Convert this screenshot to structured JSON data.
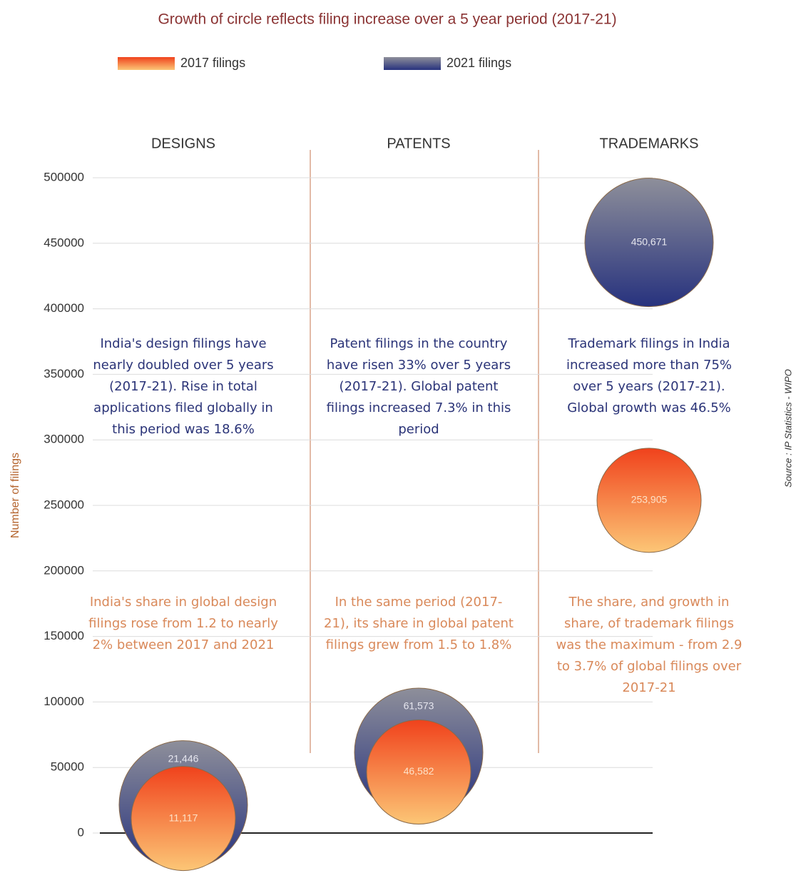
{
  "chart_data": {
    "type": "bubble",
    "title": "Growth of circle reflects filing increase over a 5 year period (2017-21)",
    "y_label": "Number of filings",
    "source": "Source : IP Statistics - WIPO",
    "categories": [
      "DESIGNS",
      "PATENTS",
      "TRADEMARKS"
    ],
    "series": [
      {
        "name": "2017 filings",
        "color": "#f0421c",
        "values": [
          11117,
          46582,
          253905
        ],
        "value_labels": [
          "11,117",
          "46,582",
          "253,905"
        ]
      },
      {
        "name": "2021 filings",
        "color": "#27327e",
        "values": [
          21446,
          61573,
          450671
        ],
        "value_labels": [
          "21,446",
          "61,573",
          "450,671"
        ]
      }
    ],
    "upper_notes": [
      "India's design filings have nearly doubled over 5 years (2017-21). Rise in total applications filed globally in this period was 18.6%",
      "Patent filings in the country have risen 33% over 5 years (2017-21). Global patent filings increased 7.3% in this period",
      "Trademark filings in India increased more than 75% over 5 years (2017-21). Global growth was 46.5%"
    ],
    "lower_notes": [
      "India's share in global design filings rose from 1.2 to nearly 2% between 2017 and 2021",
      "In the same period (2017-21), its share in global patent filings grew from 1.5 to 1.8%",
      "The share, and growth in share, of trademark filings was the maximum - from 2.9 to 3.7% of global filings over 2017-21"
    ],
    "ylim": [
      0,
      500000
    ],
    "yticks": [
      0,
      50000,
      100000,
      150000,
      200000,
      250000,
      300000,
      350000,
      400000,
      450000,
      500000
    ],
    "grid": true
  }
}
